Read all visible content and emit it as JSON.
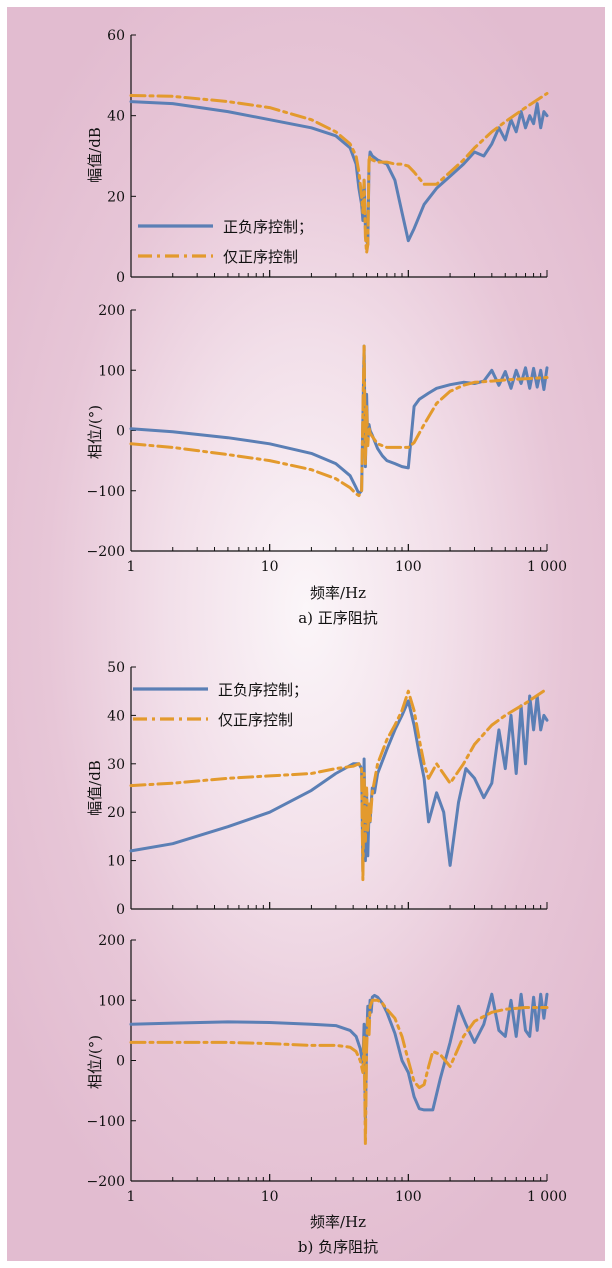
{
  "colors": {
    "series1": "#5b7fb5",
    "series2": "#e39a2d",
    "axis": "#111111"
  },
  "chart_data": [
    {
      "type": "line",
      "panel_caption": "a) 正序阻抗",
      "ylabel": "幅值/dB",
      "xscale": "log",
      "xlim": [
        1,
        1000
      ],
      "ylim": [
        0,
        60
      ],
      "yticks": [
        "0",
        "20",
        "40",
        "60"
      ],
      "legend": "left-bottom",
      "series": [
        {
          "name": "正负序控制；",
          "style": "solid",
          "x": [
            1,
            2,
            5,
            10,
            20,
            30,
            38,
            42,
            44,
            46,
            47,
            48,
            49,
            50,
            51,
            52,
            53,
            55,
            60,
            70,
            80,
            90,
            100,
            110,
            130,
            160,
            200,
            250,
            300,
            350,
            400,
            450,
            500,
            550,
            600,
            650,
            700,
            750,
            800,
            850,
            900,
            950,
            1000
          ],
          "y": [
            43.5,
            43,
            41,
            39,
            37,
            35,
            32,
            28,
            22,
            18,
            14,
            24,
            12,
            9,
            8,
            28,
            31,
            30,
            29,
            28,
            24,
            16,
            9,
            12,
            18,
            22,
            25,
            28,
            31,
            30,
            33,
            37,
            34,
            39,
            36,
            41,
            37,
            40,
            38,
            43,
            37,
            41,
            40
          ]
        },
        {
          "name": "仅正序控制",
          "style": "dashdot",
          "x": [
            1,
            2,
            5,
            10,
            20,
            30,
            38,
            42,
            44,
            46,
            47,
            48,
            49,
            50,
            51,
            52,
            53,
            55,
            60,
            70,
            80,
            90,
            100,
            110,
            130,
            160,
            200,
            250,
            300,
            400,
            500,
            700,
            1000
          ],
          "y": [
            45,
            44.8,
            43.5,
            42,
            39,
            36,
            33,
            30,
            26,
            20,
            16,
            24,
            10,
            6,
            8,
            29,
            30,
            29,
            28.5,
            28.5,
            28,
            28,
            27.5,
            26,
            23,
            23,
            26,
            29,
            32,
            36,
            38.5,
            42,
            45.5
          ]
        }
      ]
    },
    {
      "type": "line",
      "xlabel": "频率/Hz",
      "ylabel": "相位/(°)",
      "xscale": "log",
      "xlim": [
        1,
        1000
      ],
      "ylim": [
        -200,
        200
      ],
      "xticks": [
        "1",
        "10",
        "100",
        "1 000"
      ],
      "yticks": [
        "−200",
        "−100",
        "0",
        "100",
        "200"
      ],
      "series": [
        {
          "name": "正负序控制；",
          "style": "solid",
          "x": [
            1,
            2,
            5,
            10,
            20,
            30,
            38,
            42,
            44,
            46,
            47,
            48,
            49,
            50,
            51,
            52,
            53,
            55,
            60,
            65,
            70,
            80,
            90,
            100,
            110,
            120,
            140,
            160,
            200,
            250,
            300,
            350,
            400,
            450,
            500,
            550,
            600,
            650,
            700,
            750,
            800,
            850,
            900,
            950,
            1000
          ],
          "y": [
            3,
            -2,
            -12,
            -22,
            -38,
            -55,
            -75,
            -95,
            -105,
            -100,
            20,
            140,
            -60,
            60,
            -20,
            10,
            0,
            -8,
            -30,
            -42,
            -50,
            -55,
            -60,
            -62,
            40,
            52,
            62,
            70,
            76,
            80,
            78,
            82,
            100,
            75,
            98,
            70,
            100,
            78,
            104,
            70,
            103,
            72,
            100,
            68,
            104
          ]
        },
        {
          "name": "仅正序控制",
          "style": "dashdot",
          "x": [
            1,
            2,
            5,
            10,
            20,
            30,
            38,
            42,
            44,
            46,
            47,
            48,
            49,
            50,
            51,
            52,
            53,
            55,
            60,
            70,
            80,
            90,
            100,
            110,
            130,
            160,
            200,
            250,
            300,
            400,
            500,
            700,
            1000
          ],
          "y": [
            -22,
            -28,
            -40,
            -50,
            -65,
            -80,
            -95,
            -105,
            -108,
            -100,
            30,
            140,
            -55,
            40,
            -25,
            5,
            -5,
            -10,
            -22,
            -28,
            -28,
            -28,
            -28,
            -20,
            10,
            45,
            65,
            75,
            80,
            82,
            84,
            86,
            88
          ]
        }
      ]
    },
    {
      "type": "line",
      "panel_caption": "",
      "ylabel": "幅值/dB",
      "xscale": "log",
      "xlim": [
        1,
        1000
      ],
      "ylim": [
        0,
        50
      ],
      "yticks": [
        "0",
        "10",
        "20",
        "30",
        "40",
        "50"
      ],
      "legend": "top-left",
      "series": [
        {
          "name": "正负序控制；",
          "style": "solid",
          "x": [
            1,
            2,
            5,
            10,
            20,
            30,
            40,
            44,
            46,
            47,
            48,
            49,
            50,
            51,
            52,
            53,
            54,
            55,
            57,
            60,
            70,
            80,
            90,
            100,
            110,
            120,
            130,
            140,
            160,
            180,
            200,
            230,
            260,
            300,
            350,
            400,
            450,
            500,
            550,
            600,
            650,
            700,
            750,
            800,
            850,
            900,
            950,
            1000
          ],
          "y": [
            12,
            13.5,
            17,
            20,
            24.5,
            28,
            30,
            30,
            29,
            8,
            31,
            10,
            24,
            11,
            20,
            18,
            22,
            25,
            24,
            28,
            33,
            37,
            40,
            43,
            38,
            32,
            27,
            18,
            24,
            20,
            9,
            22,
            29,
            27,
            23,
            26,
            37,
            29,
            40,
            28,
            42,
            30,
            44,
            37,
            44,
            37,
            40,
            39
          ]
        },
        {
          "name": "仅正序控制",
          "style": "dashdot",
          "x": [
            1,
            2,
            5,
            10,
            20,
            30,
            40,
            44,
            46,
            47,
            48,
            49,
            50,
            51,
            52,
            53,
            55,
            60,
            70,
            80,
            90,
            100,
            110,
            120,
            130,
            140,
            160,
            200,
            250,
            300,
            400,
            500,
            700,
            1000
          ],
          "y": [
            25.5,
            26,
            27,
            27.5,
            28,
            29,
            29.5,
            30,
            29,
            6,
            28,
            14,
            25,
            16,
            22,
            18,
            24,
            30,
            35,
            38,
            41,
            45,
            41,
            35,
            30,
            27,
            30,
            26,
            30,
            34,
            38,
            40,
            42.5,
            45.5
          ]
        }
      ]
    },
    {
      "type": "line",
      "panel_caption": "b) 负序阻抗",
      "xlabel": "频率/Hz",
      "ylabel": "相位/(°)",
      "xscale": "log",
      "xlim": [
        1,
        1000
      ],
      "ylim": [
        -200,
        200
      ],
      "xticks": [
        "1",
        "10",
        "100",
        "1 000"
      ],
      "yticks": [
        "−200",
        "−100",
        "0",
        "100",
        "200"
      ],
      "series": [
        {
          "name": "正负序控制；",
          "style": "solid",
          "x": [
            1,
            2,
            5,
            10,
            20,
            30,
            38,
            42,
            45,
            47,
            48,
            49,
            50,
            51,
            52,
            53,
            54,
            55,
            57,
            60,
            65,
            70,
            80,
            90,
            100,
            110,
            120,
            130,
            140,
            150,
            170,
            200,
            230,
            260,
            300,
            350,
            400,
            450,
            500,
            550,
            600,
            650,
            700,
            750,
            800,
            850,
            900,
            950,
            1000
          ],
          "y": [
            60,
            62,
            64,
            63,
            60,
            58,
            50,
            40,
            20,
            -5,
            60,
            -100,
            30,
            90,
            60,
            100,
            80,
            105,
            108,
            105,
            95,
            80,
            45,
            0,
            -20,
            -60,
            -80,
            -82,
            -82,
            -82,
            -30,
            30,
            90,
            60,
            30,
            60,
            110,
            50,
            40,
            100,
            40,
            110,
            50,
            40,
            105,
            50,
            110,
            70,
            110
          ]
        },
        {
          "name": "仅正序控制",
          "style": "dashdot",
          "x": [
            1,
            2,
            5,
            10,
            20,
            30,
            38,
            42,
            45,
            47,
            48,
            49,
            50,
            51,
            52,
            53,
            55,
            60,
            65,
            70,
            80,
            90,
            100,
            110,
            120,
            130,
            140,
            150,
            170,
            200,
            250,
            300,
            400,
            500,
            700,
            1000
          ],
          "y": [
            30,
            30,
            30,
            28,
            25,
            25,
            22,
            15,
            0,
            -20,
            40,
            -140,
            20,
            70,
            40,
            90,
            100,
            100,
            95,
            85,
            70,
            40,
            0,
            -35,
            -45,
            -40,
            -10,
            15,
            10,
            -10,
            40,
            65,
            80,
            85,
            88,
            88
          ]
        }
      ]
    }
  ]
}
